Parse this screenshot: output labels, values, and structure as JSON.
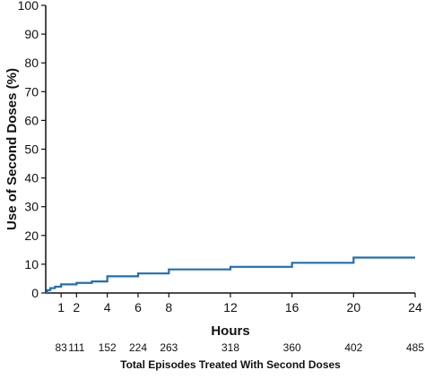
{
  "chart_data": {
    "type": "line",
    "title": "",
    "xlabel": "Hours",
    "ylabel": "Use of Second Doses (%)",
    "xlim": [
      0,
      24
    ],
    "ylim": [
      0,
      100
    ],
    "x_ticks": [
      1,
      2,
      4,
      6,
      8,
      12,
      16,
      20,
      24
    ],
    "y_ticks": [
      0,
      10,
      20,
      30,
      40,
      50,
      60,
      70,
      80,
      90,
      100
    ],
    "grid": false,
    "line_style": "step",
    "series": [
      {
        "color": "#1f6fb2",
        "points": [
          [
            0.0,
            0.0
          ],
          [
            0.1,
            1.0
          ],
          [
            0.3,
            1.7
          ],
          [
            0.6,
            2.2
          ],
          [
            1.0,
            3.0
          ],
          [
            2.0,
            3.5
          ],
          [
            3.0,
            4.0
          ],
          [
            4.0,
            5.8
          ],
          [
            6.0,
            6.8
          ],
          [
            8.0,
            8.2
          ],
          [
            12.0,
            9.1
          ],
          [
            16.0,
            10.5
          ],
          [
            20.0,
            12.3
          ],
          [
            24.0,
            12.3
          ]
        ]
      }
    ],
    "episodes": {
      "title": "Total Episodes Treated With Second Doses",
      "items": [
        {
          "x": 1,
          "label": "83"
        },
        {
          "x": 2,
          "label": "111"
        },
        {
          "x": 4,
          "label": "152"
        },
        {
          "x": 6,
          "label": "224"
        },
        {
          "x": 8,
          "label": "263"
        },
        {
          "x": 12,
          "label": "318"
        },
        {
          "x": 16,
          "label": "360"
        },
        {
          "x": 20,
          "label": "402"
        },
        {
          "x": 24,
          "label": "485"
        }
      ]
    }
  }
}
